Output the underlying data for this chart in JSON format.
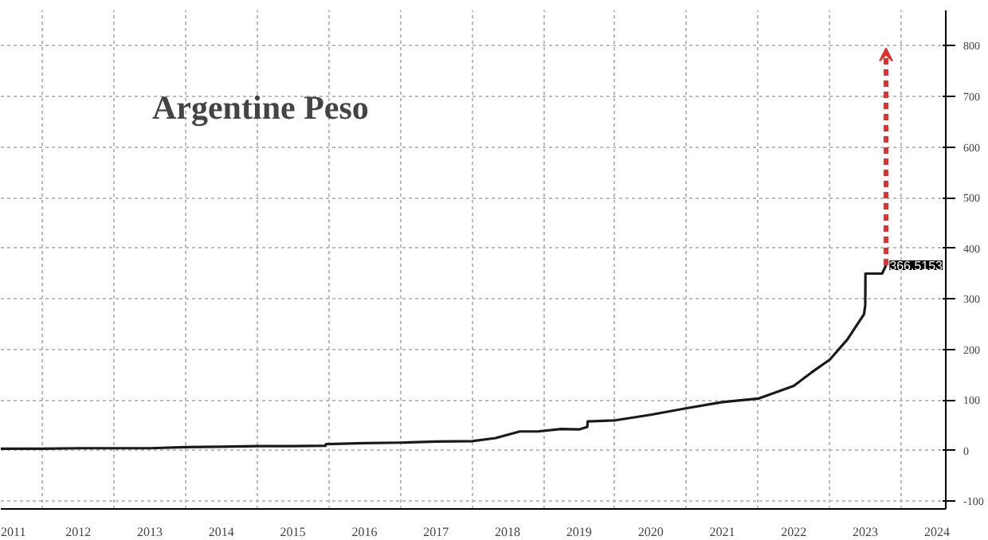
{
  "chart_data": {
    "type": "line",
    "title": "Argentine Peso",
    "x": [
      "2011-06-01",
      "2012-01-01",
      "2012-07-01",
      "2013-01-01",
      "2013-07-01",
      "2014-01-01",
      "2014-07-01",
      "2015-01-01",
      "2015-07-01",
      "2015-12-15",
      "2015-12-17",
      "2016-07-01",
      "2017-01-01",
      "2017-07-01",
      "2018-01-01",
      "2018-05-01",
      "2018-09-01",
      "2018-12-01",
      "2019-04-01",
      "2019-07-01",
      "2019-08-12",
      "2019-08-14",
      "2020-01-01",
      "2020-07-01",
      "2021-01-01",
      "2021-07-01",
      "2022-01-01",
      "2022-07-01",
      "2022-10-01",
      "2023-01-01",
      "2023-04-01",
      "2023-06-25",
      "2023-07-01",
      "2023-07-02",
      "2023-09-25",
      "2023-10-15"
    ],
    "series": [
      {
        "color": "#1a1a1a",
        "values": [
          4,
          4,
          5,
          5,
          5,
          7,
          8,
          9,
          9,
          10,
          13,
          15,
          16,
          18,
          19,
          25,
          38,
          38,
          43,
          42,
          47,
          58,
          60,
          71,
          84,
          96,
          103,
          128,
          155,
          180,
          220,
          270,
          288,
          350,
          350,
          366.5153
        ]
      }
    ],
    "annotations": [
      {
        "text": "366.5153",
        "x": "2023-10-15",
        "y": 366.5153
      }
    ],
    "xlim": [
      "2011-06-01",
      "2024-08-15"
    ],
    "xticks": [
      {
        "value": "2011-07-01",
        "label": "2011"
      },
      {
        "value": "2012-01-01",
        "label": null
      },
      {
        "value": "2012-07-01",
        "label": "2012"
      },
      {
        "value": "2013-01-01",
        "label": null
      },
      {
        "value": "2013-07-01",
        "label": "2013"
      },
      {
        "value": "2014-01-01",
        "label": null
      },
      {
        "value": "2014-07-01",
        "label": "2014"
      },
      {
        "value": "2015-01-01",
        "label": null
      },
      {
        "value": "2015-07-01",
        "label": "2015"
      },
      {
        "value": "2016-01-01",
        "label": null
      },
      {
        "value": "2016-07-01",
        "label": "2016"
      },
      {
        "value": "2017-01-01",
        "label": null
      },
      {
        "value": "2017-07-01",
        "label": "2017"
      },
      {
        "value": "2018-01-01",
        "label": null
      },
      {
        "value": "2018-07-01",
        "label": "2018"
      },
      {
        "value": "2019-01-01",
        "label": null
      },
      {
        "value": "2019-07-01",
        "label": "2019"
      },
      {
        "value": "2020-01-01",
        "label": null
      },
      {
        "value": "2020-07-01",
        "label": "2020"
      },
      {
        "value": "2021-01-01",
        "label": null
      },
      {
        "value": "2021-07-01",
        "label": "2021"
      },
      {
        "value": "2022-01-01",
        "label": null
      },
      {
        "value": "2022-07-01",
        "label": "2022"
      },
      {
        "value": "2023-01-01",
        "label": null
      },
      {
        "value": "2023-07-01",
        "label": "2023"
      },
      {
        "value": "2024-01-01",
        "label": null
      },
      {
        "value": "2024-07-01",
        "label": "2024"
      }
    ],
    "ylim": [
      -115,
      870
    ],
    "yticks": [
      -100,
      0,
      100,
      200,
      300,
      400,
      500,
      600,
      700,
      800
    ],
    "grid": true,
    "marker": "none",
    "line_style": "solid"
  }
}
